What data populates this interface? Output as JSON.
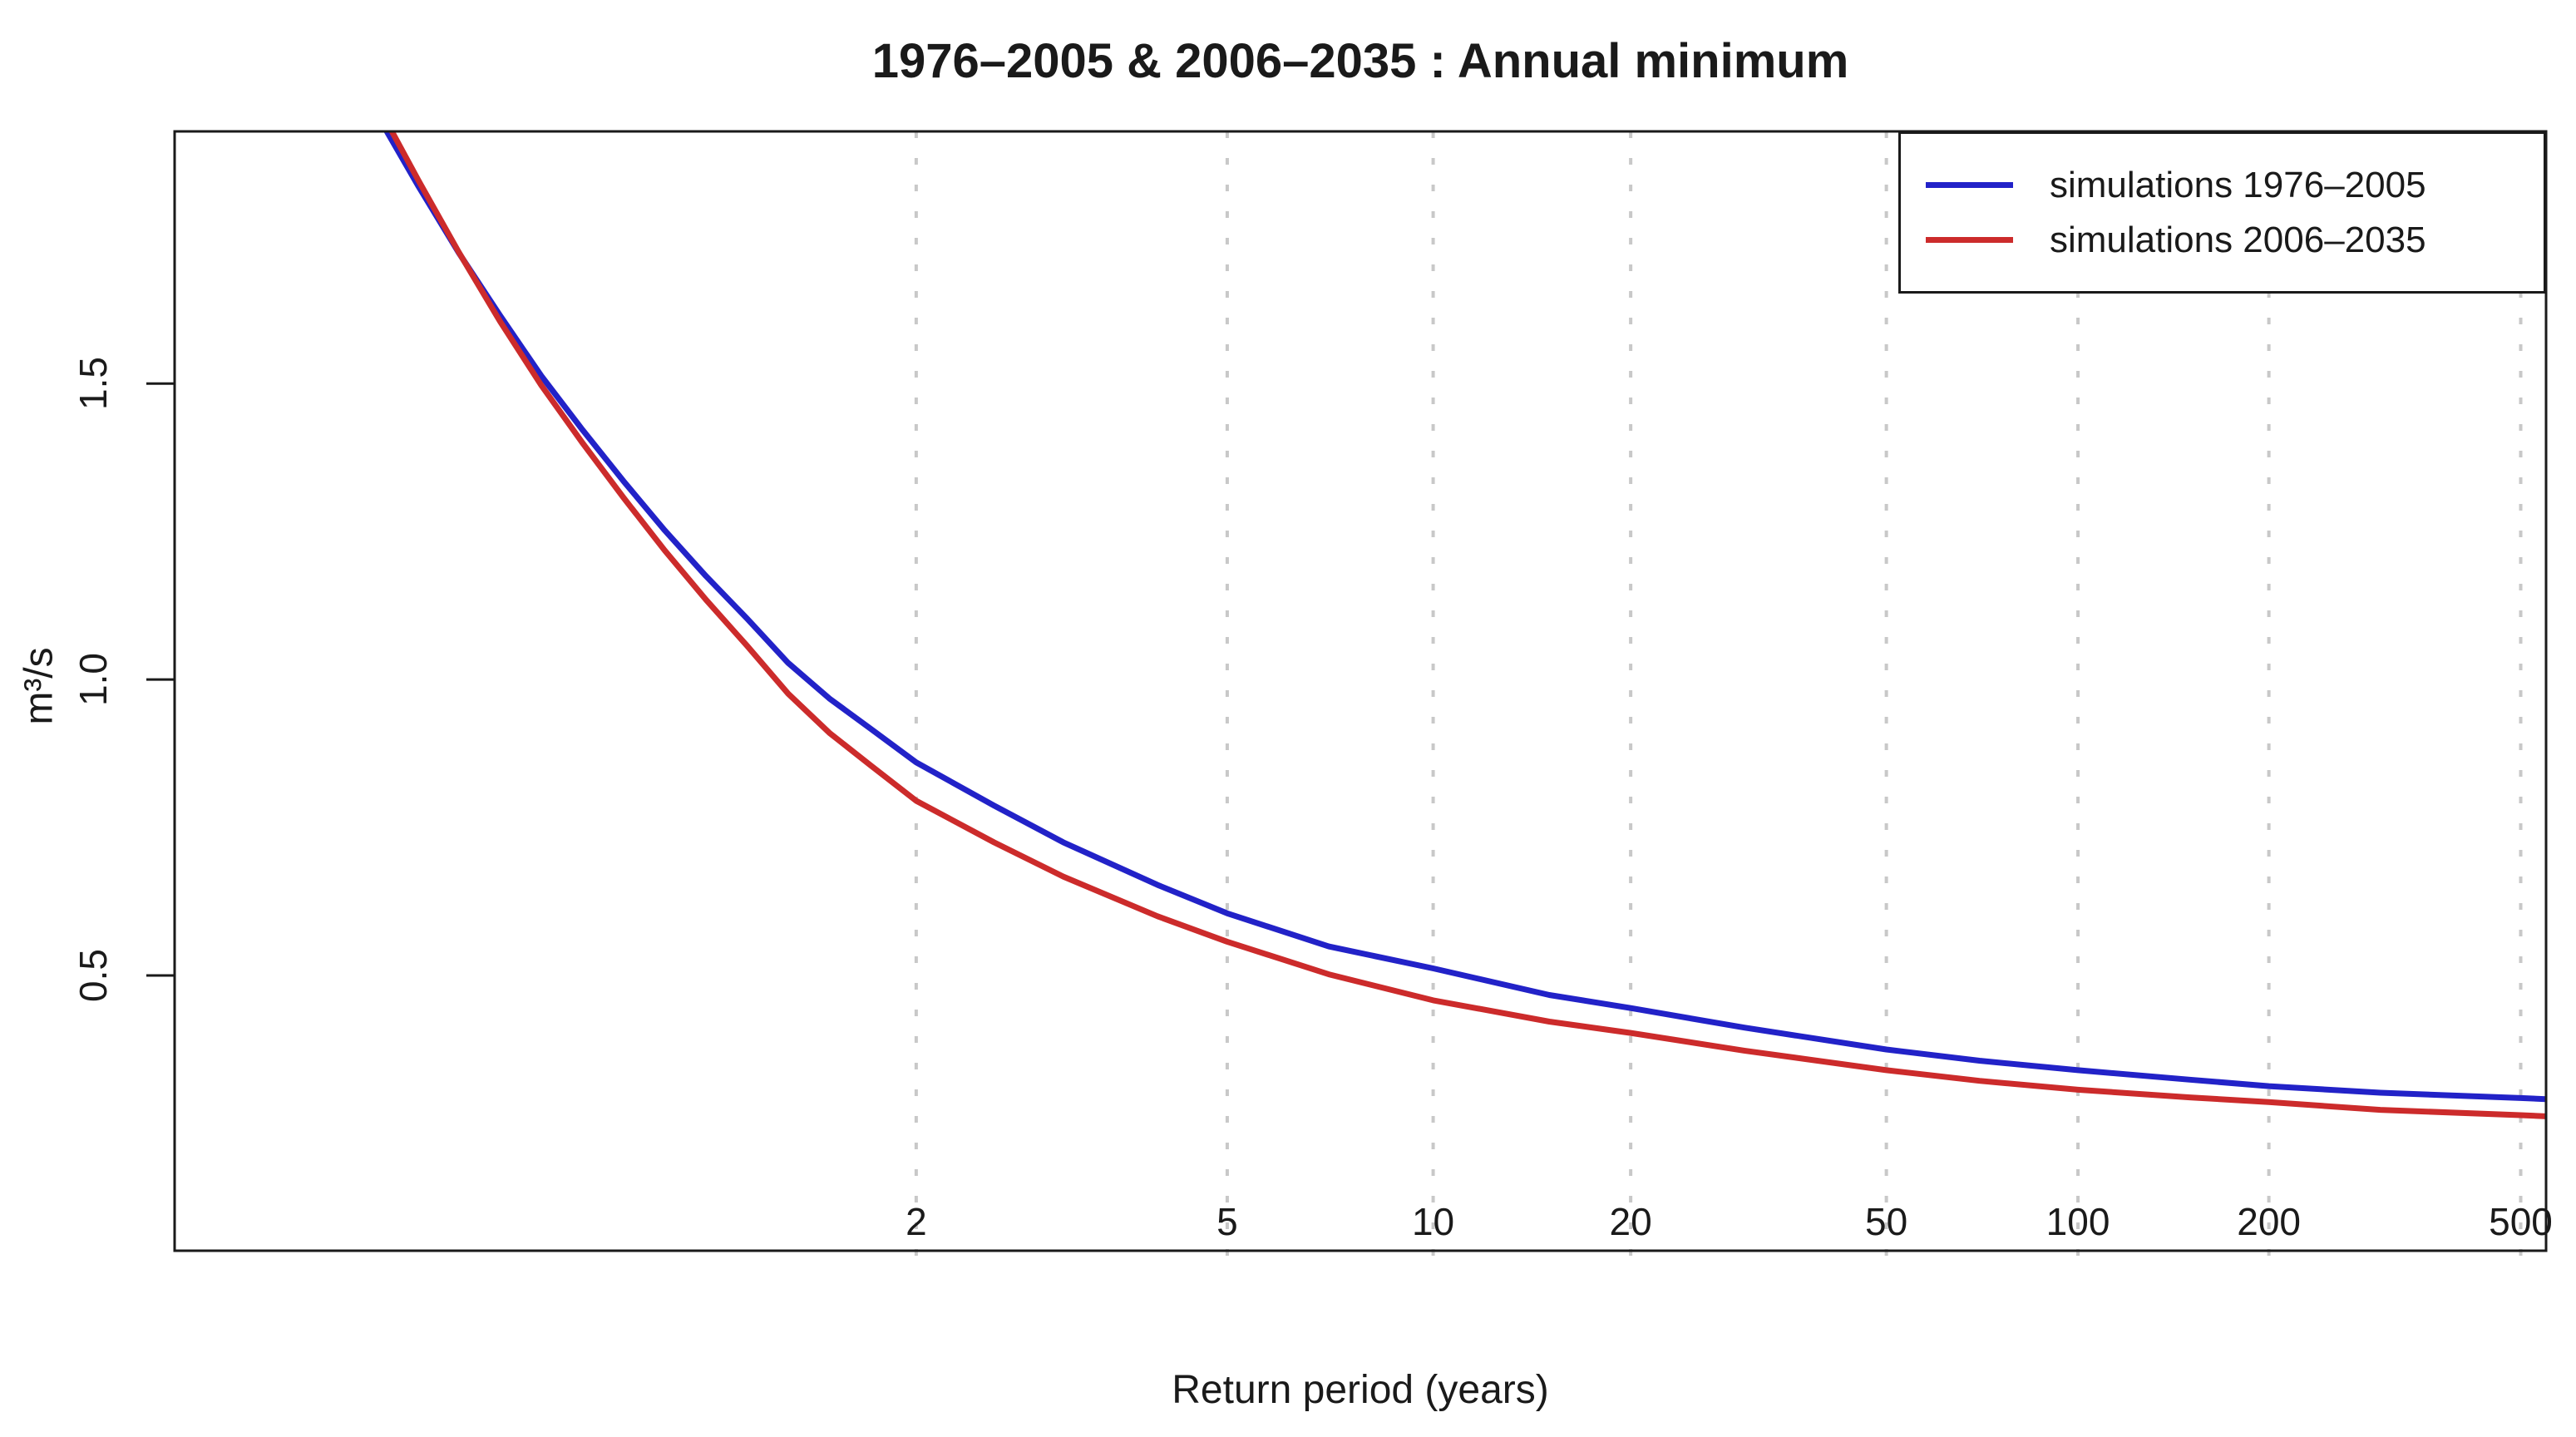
{
  "title": "1976–2005 & 2006–2035 : Annual minimum",
  "chart_data": {
    "type": "line",
    "title": "1976–2005 & 2006–2035 : Annual minimum",
    "xlabel": "Return period (years)",
    "ylabel": "m³/s",
    "x_scale": "gumbel-reduced-variate (return period, log-like)",
    "x_ticks": [
      2,
      5,
      10,
      20,
      50,
      100,
      200,
      500
    ],
    "y_ticks": [
      0.5,
      1.0,
      1.5
    ],
    "y_tick_labels": [
      "0.5",
      "1.0",
      "1.5"
    ],
    "ylim": [
      0.035,
      1.926
    ],
    "x_range_rv": [
      -2.336,
      6.306
    ],
    "grid": "vertical dotted gridlines at each x tick",
    "gridline_color": "#c8c8c8",
    "axis_color": "#1a1a1a",
    "legend_position": "topright",
    "series": [
      {
        "name": "simulations 1976–2005",
        "color": "#2222c8",
        "points": [
          [
            1.0042,
            2.04
          ],
          [
            1.0071,
            1.956
          ],
          [
            1.0143,
            1.835
          ],
          [
            1.0261,
            1.721
          ],
          [
            1.0444,
            1.615
          ],
          [
            1.0707,
            1.513
          ],
          [
            1.1066,
            1.422
          ],
          [
            1.1541,
            1.335
          ],
          [
            1.2146,
            1.252
          ],
          [
            1.2903,
            1.175
          ],
          [
            1.383,
            1.103
          ],
          [
            1.4951,
            1.028
          ],
          [
            1.6294,
            0.968
          ],
          [
            1.7889,
            0.917
          ],
          [
            2,
            0.86
          ],
          [
            2.4587,
            0.787
          ],
          [
            3,
            0.725
          ],
          [
            4,
            0.653
          ],
          [
            5,
            0.605
          ],
          [
            7,
            0.549
          ],
          [
            10,
            0.512
          ],
          [
            15,
            0.467
          ],
          [
            20,
            0.445
          ],
          [
            30,
            0.412
          ],
          [
            50,
            0.375
          ],
          [
            70,
            0.356
          ],
          [
            100,
            0.34
          ],
          [
            150,
            0.324
          ],
          [
            200,
            0.313
          ],
          [
            300,
            0.302
          ],
          [
            500,
            0.293
          ],
          [
            551,
            0.291
          ]
        ]
      },
      {
        "name": "simulations 2006–2035",
        "color": "#cc2b2b",
        "points": [
          [
            1.0042,
            2.1
          ],
          [
            1.0071,
            1.974
          ],
          [
            1.0143,
            1.845
          ],
          [
            1.0261,
            1.722
          ],
          [
            1.0444,
            1.605
          ],
          [
            1.0707,
            1.497
          ],
          [
            1.1066,
            1.4
          ],
          [
            1.1541,
            1.307
          ],
          [
            1.2146,
            1.218
          ],
          [
            1.2903,
            1.135
          ],
          [
            1.383,
            1.057
          ],
          [
            1.4951,
            0.976
          ],
          [
            1.6294,
            0.91
          ],
          [
            1.7889,
            0.855
          ],
          [
            2,
            0.795
          ],
          [
            2.4587,
            0.725
          ],
          [
            3,
            0.667
          ],
          [
            4,
            0.6
          ],
          [
            5,
            0.557
          ],
          [
            7,
            0.502
          ],
          [
            10,
            0.458
          ],
          [
            15,
            0.422
          ],
          [
            20,
            0.403
          ],
          [
            30,
            0.373
          ],
          [
            50,
            0.34
          ],
          [
            70,
            0.322
          ],
          [
            100,
            0.307
          ],
          [
            150,
            0.294
          ],
          [
            200,
            0.286
          ],
          [
            300,
            0.273
          ],
          [
            500,
            0.264
          ],
          [
            551,
            0.262
          ]
        ]
      }
    ]
  }
}
